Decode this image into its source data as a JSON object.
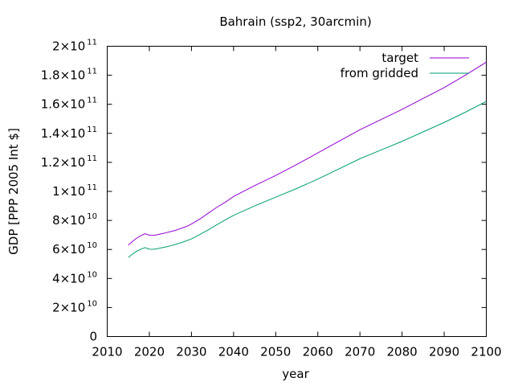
{
  "chart_data": {
    "type": "line",
    "title": "Bahrain (ssp2, 30arcmin)",
    "xlabel": "year",
    "ylabel": "GDP [PPP 2005 Int $]",
    "xlim": [
      2010,
      2100
    ],
    "ylim": [
      0,
      200000000000
    ],
    "x_ticks": [
      2010,
      2020,
      2030,
      2040,
      2050,
      2060,
      2070,
      2080,
      2090,
      2100
    ],
    "x_tick_labels": [
      "2010",
      "2020",
      "2030",
      "2040",
      "2050",
      "2060",
      "2070",
      "2080",
      "2090",
      "2100"
    ],
    "y_ticks": [
      {
        "value": 0,
        "mantissa": "0",
        "exponent": ""
      },
      {
        "value": 20000000000,
        "mantissa": "2×10",
        "exponent": "10"
      },
      {
        "value": 40000000000,
        "mantissa": "4×10",
        "exponent": "10"
      },
      {
        "value": 60000000000,
        "mantissa": "6×10",
        "exponent": "10"
      },
      {
        "value": 80000000000,
        "mantissa": "8×10",
        "exponent": "10"
      },
      {
        "value": 100000000000,
        "mantissa": "1×10",
        "exponent": "11"
      },
      {
        "value": 120000000000,
        "mantissa": "1.2×10",
        "exponent": "11"
      },
      {
        "value": 140000000000,
        "mantissa": "1.4×10",
        "exponent": "11"
      },
      {
        "value": 160000000000,
        "mantissa": "1.6×10",
        "exponent": "11"
      },
      {
        "value": 180000000000,
        "mantissa": "1.8×10",
        "exponent": "11"
      },
      {
        "value": 200000000000,
        "mantissa": "2×10",
        "exponent": "11"
      }
    ],
    "grid": false,
    "legend_position": "top-right",
    "series": [
      {
        "name": "target",
        "color": "#9400d3",
        "x": [
          2015,
          2016,
          2017,
          2018,
          2019,
          2020,
          2021,
          2022,
          2023,
          2024,
          2025,
          2026,
          2027,
          2028,
          2029,
          2030,
          2032,
          2034,
          2036,
          2038,
          2040,
          2045,
          2050,
          2055,
          2060,
          2065,
          2070,
          2075,
          2080,
          2085,
          2090,
          2095,
          2100
        ],
        "y": [
          63000000000,
          65500000000,
          67800000000,
          69500000000,
          70800000000,
          69800000000,
          69700000000,
          70200000000,
          70900000000,
          71500000000,
          72300000000,
          73000000000,
          74000000000,
          75000000000,
          76000000000,
          77500000000,
          81000000000,
          85000000000,
          89000000000,
          92500000000,
          96500000000,
          104000000000,
          111000000000,
          118500000000,
          126500000000,
          134500000000,
          142500000000,
          149500000000,
          156500000000,
          164000000000,
          171500000000,
          180000000000,
          189000000000
        ]
      },
      {
        "name": "from gridded",
        "color": "#009e73",
        "x": [
          2015,
          2016,
          2017,
          2018,
          2019,
          2020,
          2021,
          2022,
          2023,
          2024,
          2025,
          2026,
          2027,
          2028,
          2029,
          2030,
          2032,
          2034,
          2036,
          2038,
          2040,
          2045,
          2050,
          2055,
          2060,
          2065,
          2070,
          2075,
          2080,
          2085,
          2090,
          2095,
          2100
        ],
        "y": [
          54500000000,
          56800000000,
          58800000000,
          60200000000,
          61300000000,
          60200000000,
          60100000000,
          60600000000,
          61200000000,
          61800000000,
          62500000000,
          63300000000,
          64200000000,
          65100000000,
          66200000000,
          67200000000,
          70300000000,
          73500000000,
          77000000000,
          80300000000,
          83500000000,
          90000000000,
          96000000000,
          102000000000,
          108500000000,
          115500000000,
          122500000000,
          128500000000,
          134500000000,
          141000000000,
          147500000000,
          154500000000,
          162000000000
        ]
      }
    ]
  }
}
